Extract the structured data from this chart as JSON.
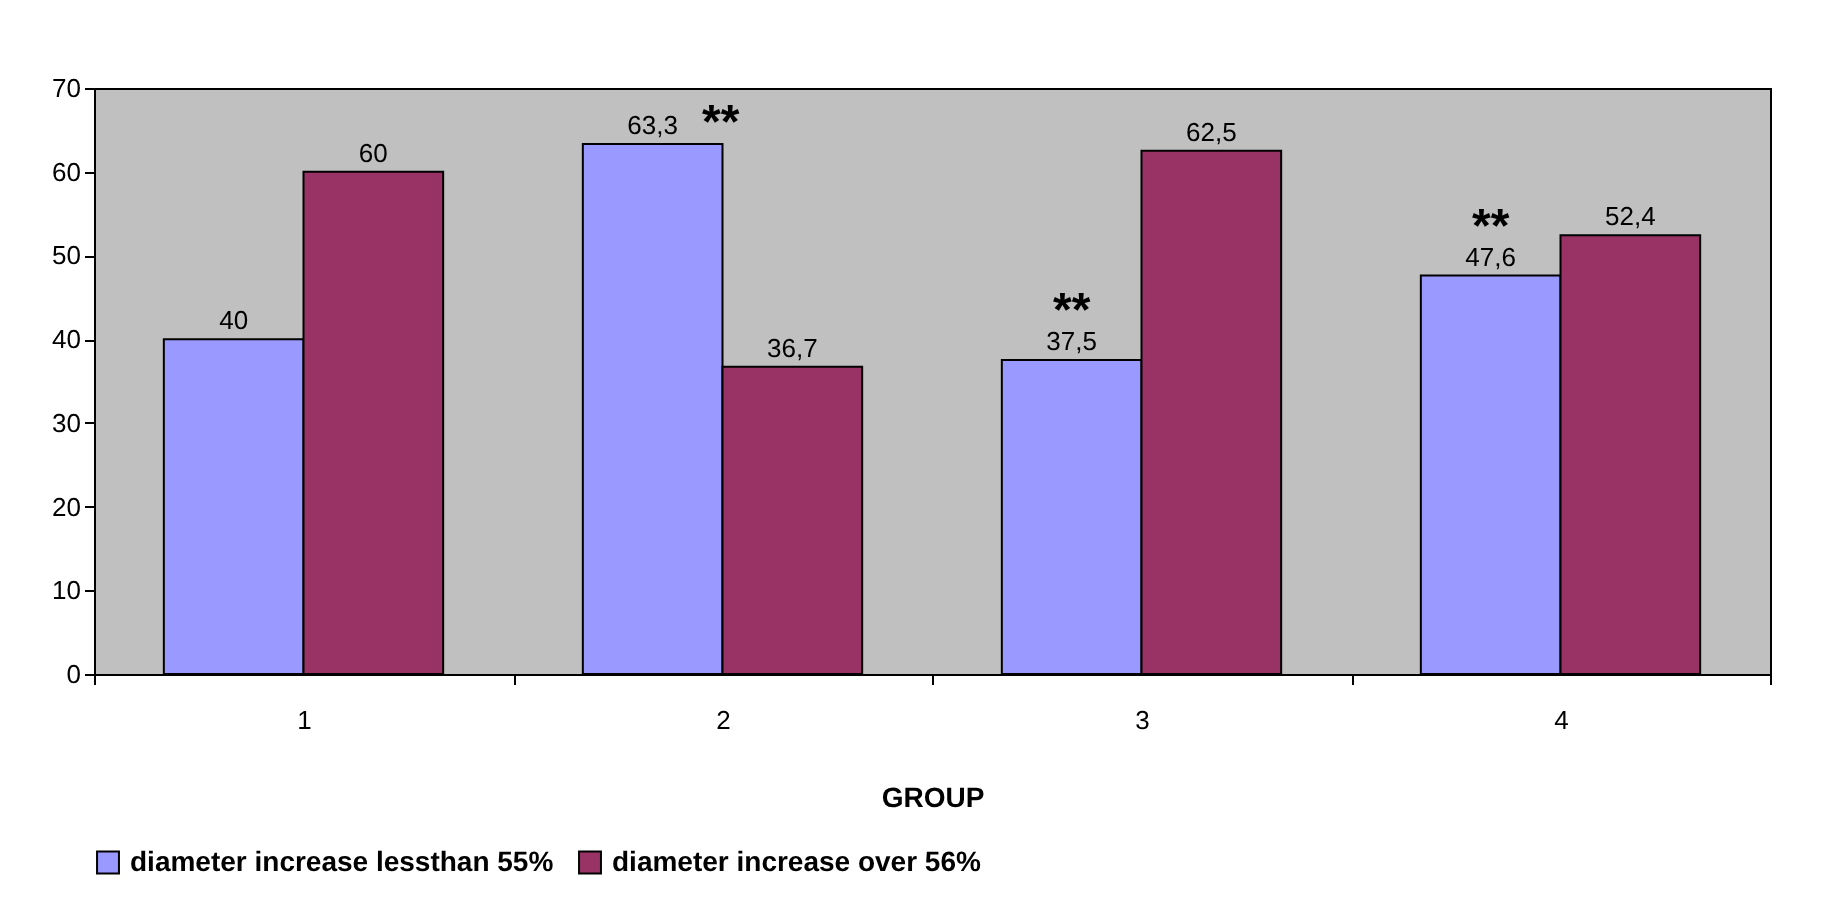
{
  "chart_data": {
    "type": "bar",
    "xlabel": "GROUP",
    "categories": [
      "1",
      "2",
      "3",
      "4"
    ],
    "series": [
      {
        "name": "diameter increase lessthan 55%",
        "color": "#9999ff",
        "values": [
          40,
          63.3,
          37.5,
          47.6
        ],
        "value_labels": [
          "40",
          "63,3",
          "37,5",
          "47,6"
        ]
      },
      {
        "name": "diameter increase over 56%",
        "color": "#993366",
        "values": [
          60,
          36.7,
          62.5,
          52.4
        ],
        "value_labels": [
          "60",
          "36,7",
          "62,5",
          "52,4"
        ]
      }
    ],
    "ylim": [
      0,
      70
    ],
    "yticks": [
      0,
      10,
      20,
      30,
      40,
      50,
      60,
      70
    ],
    "grid": false,
    "legend": "bottom",
    "annotations": [
      {
        "text": "**",
        "x": "2",
        "y": 63.3
      },
      {
        "text": "**",
        "x": "3",
        "y": 37.5
      },
      {
        "text": "**",
        "x": "4",
        "y": 47.6
      }
    ]
  }
}
